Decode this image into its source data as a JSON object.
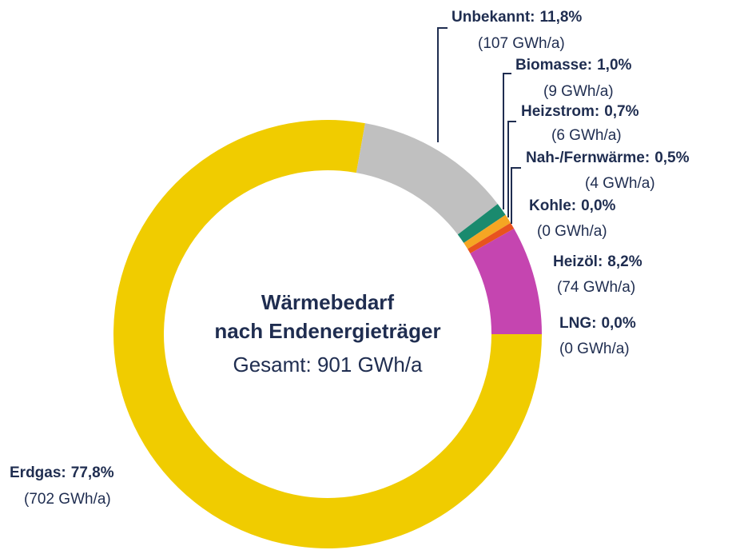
{
  "chart_data": {
    "type": "donut",
    "center_title": [
      "Wärmebedarf",
      "nach Endenergieträger"
    ],
    "center_subtitle": "Gesamt: 901 GWh/a",
    "categories": [
      "LNG:",
      "Heizöl:",
      "Kohle:",
      "Nah-/Fernwärme:",
      "Heizstrom:",
      "Biomasse:",
      "Unbekannt:",
      "Erdgas:"
    ],
    "values": [
      0.0,
      8.2,
      0.0,
      0.5,
      0.7,
      1.0,
      11.8,
      77.8
    ],
    "value_labels": [
      "0,0%",
      "8,2%",
      "0,0%",
      "0,5%",
      "0,7%",
      "1,0%",
      "11,8%",
      "77,8%"
    ],
    "energy_labels": [
      "(0 GWh/a)",
      "(74 GWh/a)",
      "(0 GWh/a)",
      "(4 GWh/a)",
      "(6 GWh/a)",
      "(9 GWh/a)",
      "(107 GWh/a)",
      "(702 GWh/a)"
    ],
    "colors": [
      "#7a3fa0",
      "#c545b0",
      "#555555",
      "#e8531e",
      "#f5a623",
      "#1a8a6e",
      "#c0c0c0",
      "#f0cc00"
    ]
  }
}
